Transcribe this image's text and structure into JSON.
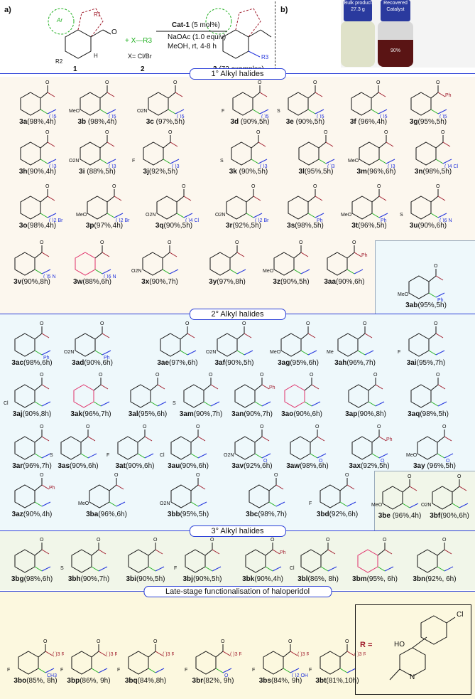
{
  "scheme": {
    "panel_a": "a)",
    "panel_b": "b)",
    "ar": "Ar",
    "r1": "R1",
    "r2": "R2",
    "r3": "R3",
    "h": "H",
    "o": "O",
    "plus_reagent": "+ X—R3",
    "x_def": "X= Cl/Br",
    "label_1": "1",
    "label_2": "2",
    "catalyst": "Cat-1",
    "catalyst_loading": "(5 mol%)",
    "base": "NaOAc (1.0 equiv)",
    "conditions": "MeOH, rt, 4-8 h",
    "product_id": "3",
    "product_count": "(72 examples)"
  },
  "photo": {
    "bottle1_label": "Bulk product 27.3 g",
    "bottle2_label": "Recovered Catalyst",
    "bottle2_text": "90%"
  },
  "sections": {
    "primary": "1° Alkyl halides",
    "secondary": "2° Alkyl halides",
    "tertiary": "3° Alkyl halides",
    "late": "Late-stage functionalisation of haloperidol"
  },
  "r_definition": {
    "label": "R =",
    "ho": "HO",
    "cl": "Cl",
    "n": "N"
  },
  "colors": {
    "primary_bg": "#fcf7ee",
    "secondary_bg": "#eef8fb",
    "tertiary_bg": "#f1f6e9",
    "late_bg": "#fcf8df",
    "section_line": "#2a3fd8",
    "new_bond": "#22b022",
    "alkyl": "#2233dd",
    "ketone": "#a01c2c",
    "naphthyl": "#e0306a"
  },
  "compounds": [
    {
      "id": "3a",
      "text": "(98%,4h)",
      "sub": "",
      "tail": "( )5"
    },
    {
      "id": "3b",
      "text": " (98%,4h)",
      "sub": "MeO",
      "tail": "( )5"
    },
    {
      "id": "3c",
      "text": " (97%,5h)",
      "sub": "O2N",
      "tail": "( )5"
    },
    {
      "id": "3d",
      "text": " (90%,5h)",
      "sub": "F",
      "tail": "( )5"
    },
    {
      "id": "3e",
      "text": " (90%,5h)",
      "sub": "S",
      "tail": "( )5"
    },
    {
      "id": "3f",
      "text": " (96%,4h)",
      "sub": "",
      "tail": "( )5"
    },
    {
      "id": "3g",
      "text": "(95%,5h)",
      "sub": "",
      "tail": "( )5",
      "ketone": "Ph"
    },
    {
      "id": "3h",
      "text": "(90%,4h)",
      "sub": "",
      "tail": "( )3"
    },
    {
      "id": "3i",
      "text": " (88%,5h)",
      "sub": "O2N",
      "tail": "( )3"
    },
    {
      "id": "3j",
      "text": "(92%,5h)",
      "sub": "F",
      "tail": "( )3"
    },
    {
      "id": "3k",
      "text": " (90%,5h)",
      "sub": "S",
      "tail": "( )3"
    },
    {
      "id": "3l",
      "text": "(95%,5h)",
      "sub": "",
      "tail": "( )3"
    },
    {
      "id": "3m",
      "text": "(96%,6h)",
      "sub": "MeO",
      "tail": "( )3"
    },
    {
      "id": "3n",
      "text": "(98%,5h)",
      "sub": "",
      "tail": "( )4 Cl"
    },
    {
      "id": "3o",
      "text": "(98%,4h)",
      "sub": "",
      "tail": "( )2 Br"
    },
    {
      "id": "3p",
      "text": "(97%,4h)",
      "sub": "MeO",
      "tail": "( )2 Br"
    },
    {
      "id": "3q",
      "text": "(90%,5h)",
      "sub": "O2N",
      "tail": "( )4 Cl"
    },
    {
      "id": "3r",
      "text": "(92%,5h)",
      "sub": "O2N",
      "tail": "( )2 Br"
    },
    {
      "id": "3s",
      "text": "(98%,5h)",
      "sub": "",
      "tail": "Ph"
    },
    {
      "id": "3t",
      "text": "(96%,5h)",
      "sub": "MeO",
      "tail": "Ph"
    },
    {
      "id": "3u",
      "text": "(90%,6h)",
      "sub": "S",
      "tail": "( )6 N"
    },
    {
      "id": "3v",
      "text": "(90%,8h)",
      "sub": "",
      "tail": "( )5 N"
    },
    {
      "id": "3w",
      "text": "(88%,6h)",
      "sub": "",
      "tail": "( )6 N"
    },
    {
      "id": "3x",
      "text": "(90%,7h)",
      "sub": "O2N",
      "tail": ""
    },
    {
      "id": "3y",
      "text": "(97%,8h)",
      "sub": "",
      "tail": ""
    },
    {
      "id": "3z",
      "text": "(90%,5h)",
      "sub": "MeO",
      "tail": ""
    },
    {
      "id": "3aa",
      "text": "(90%,6h)",
      "sub": "",
      "tail": "",
      "ketone": "Ph"
    },
    {
      "id": "3ab",
      "text": "(95%,5h)",
      "sub": "MeO",
      "tail": "Ph"
    },
    {
      "id": "3ac",
      "text": "(98%,6h)",
      "sub": "",
      "tail": "Ph"
    },
    {
      "id": "3ad",
      "text": "(90%,6h)",
      "sub": "O2N",
      "tail": "Ph"
    },
    {
      "id": "3ae",
      "text": "(97%,6h)",
      "sub": "",
      "tail": ""
    },
    {
      "id": "3af",
      "text": "(90%,5h)",
      "sub": "O2N",
      "tail": ""
    },
    {
      "id": "3ag",
      "text": "(95%,6h)",
      "sub": "MeO",
      "tail": ""
    },
    {
      "id": "3ah",
      "text": "(96%,7h)",
      "sub": "Me",
      "tail": ""
    },
    {
      "id": "3ai",
      "text": "(95%,7h)",
      "sub": "F",
      "tail": ""
    },
    {
      "id": "3aj",
      "text": "(90%,8h)",
      "sub": "Cl",
      "tail": ""
    },
    {
      "id": "3ak",
      "text": "(96%,7h)",
      "sub": "",
      "tail": ""
    },
    {
      "id": "3al",
      "text": "(95%,6h)",
      "sub": "",
      "tail": ""
    },
    {
      "id": "3am",
      "text": "(90%,7h)",
      "sub": "S",
      "tail": ""
    },
    {
      "id": "3an",
      "text": "(90%,7h)",
      "sub": "",
      "tail": "",
      "ketone": "Ph"
    },
    {
      "id": "3ao",
      "text": "(90%,6h)",
      "sub": "",
      "tail": ""
    },
    {
      "id": "3ap",
      "text": "(90%,8h)",
      "sub": "",
      "tail": ""
    },
    {
      "id": "3aq",
      "text": "(98%,5h)",
      "sub": "",
      "tail": ""
    },
    {
      "id": "3ar",
      "text": "(96%,7h)",
      "sub": "",
      "tail": ""
    },
    {
      "id": "3as",
      "text": "(90%,6h)",
      "sub": "S",
      "tail": ""
    },
    {
      "id": "3at",
      "text": "(90%,6h)",
      "sub": "F",
      "tail": ""
    },
    {
      "id": "3au",
      "text": "(90%,6h)",
      "sub": "Cl",
      "tail": ""
    },
    {
      "id": "3av",
      "text": "(92%,6h)",
      "sub": "O2N",
      "tail": "O"
    },
    {
      "id": "3aw",
      "text": "(98%,6h)",
      "sub": "",
      "tail": "O"
    },
    {
      "id": "3ax",
      "text": "(92%,5h)",
      "sub": "",
      "tail": "O",
      "ketone": "Ph"
    },
    {
      "id": "3ay",
      "text": " (96%,5h)",
      "sub": "MeO",
      "tail": "O"
    },
    {
      "id": "3az",
      "text": "(90%,4h)",
      "sub": "",
      "tail": "",
      "ketone": "Ph"
    },
    {
      "id": "3ba",
      "text": "(96%,6h)",
      "sub": "MeO",
      "tail": ""
    },
    {
      "id": "3bb",
      "text": "(95%,5h)",
      "sub": "O2N",
      "tail": ""
    },
    {
      "id": "3bc",
      "text": "(98%,7h)",
      "sub": "",
      "tail": ""
    },
    {
      "id": "3bd",
      "text": "(92%,6h)",
      "sub": "F",
      "tail": ""
    },
    {
      "id": "3be",
      "text": " (96%,4h)",
      "sub": "MeO",
      "tail": ""
    },
    {
      "id": "3bf",
      "text": "(90%,6h)",
      "sub": "O2N",
      "tail": ""
    },
    {
      "id": "3bg",
      "text": "(98%,6h)",
      "sub": "",
      "tail": ""
    },
    {
      "id": "3bh",
      "text": "(90%,7h)",
      "sub": "S",
      "tail": ""
    },
    {
      "id": "3bi",
      "text": "(90%,5h)",
      "sub": "",
      "tail": ""
    },
    {
      "id": "3bj",
      "text": "(90%,5h)",
      "sub": "F",
      "tail": ""
    },
    {
      "id": "3bk",
      "text": "(90%,4h)",
      "sub": "",
      "tail": "",
      "ketone": "Ph"
    },
    {
      "id": "3bl",
      "text": "(86%, 8h)",
      "sub": "Cl",
      "tail": ""
    },
    {
      "id": "3bm",
      "text": "(95%, 6h)",
      "sub": "",
      "tail": ""
    },
    {
      "id": "3bn",
      "text": "(92%, 6h)",
      "sub": "",
      "tail": ""
    },
    {
      "id": "3bo",
      "text": "(85%, 8h)",
      "sub": "F",
      "tail": "CH3",
      "ketone": "( )3 R"
    },
    {
      "id": "3bp",
      "text": "(86%, 9h)",
      "sub": "F",
      "tail": "",
      "ketone": "( )3 R"
    },
    {
      "id": "3bq",
      "text": "(84%,8h)",
      "sub": "F",
      "tail": "",
      "ketone": "( )3 R"
    },
    {
      "id": "3br",
      "text": "(82%, 9h)",
      "sub": "F",
      "tail": "O",
      "ketone": "( )3 R"
    },
    {
      "id": "3bs",
      "text": "(84%, 9h)",
      "sub": "F",
      "tail": "( )2 OH",
      "ketone": "( )3 R"
    },
    {
      "id": "3bt",
      "text": "(81%,10h)",
      "sub": "F",
      "tail": "",
      "ketone": "( )3 R"
    }
  ]
}
